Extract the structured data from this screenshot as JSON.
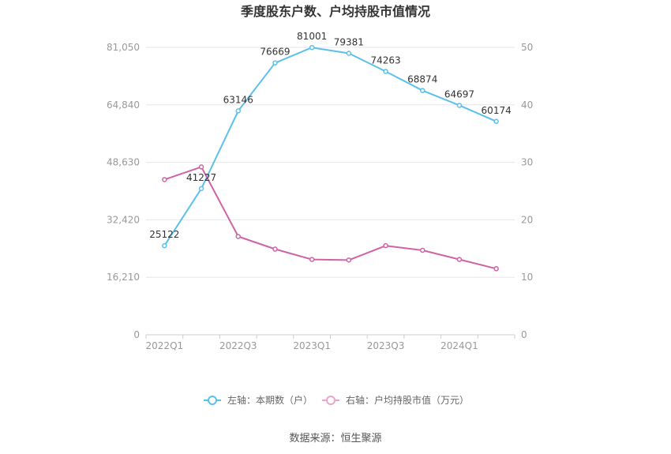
{
  "chart_data": {
    "type": "line",
    "title": "季度股东户数、户均持股市值情况",
    "categories": [
      "2022Q1",
      "2022Q2",
      "2022Q3",
      "2022Q4",
      "2023Q1",
      "2023Q2",
      "2023Q3",
      "2023Q4",
      "2024Q1",
      "2024Q2"
    ],
    "x_tick_labels": [
      "2022Q1",
      "2022Q3",
      "2023Q1",
      "2023Q3",
      "2024Q1"
    ],
    "left_axis": {
      "ylim": [
        0,
        81050
      ],
      "ticks": [
        0,
        16210,
        32420,
        48630,
        64840,
        81050
      ],
      "tick_labels": [
        "0",
        "16,210",
        "32,420",
        "48,630",
        "64,840",
        "81,050"
      ]
    },
    "right_axis": {
      "ylim": [
        0,
        50
      ],
      "ticks": [
        0,
        10,
        20,
        30,
        40,
        50
      ],
      "tick_labels": [
        "0",
        "10",
        "20",
        "30",
        "40",
        "50"
      ]
    },
    "series": [
      {
        "name": "左轴：本期数（户）",
        "axis": "left",
        "color": "#5bc0eb",
        "values": [
          25122,
          41227,
          63146,
          76669,
          81001,
          79381,
          74263,
          68874,
          64697,
          60174
        ],
        "labels": [
          "25122",
          "41227",
          "63146",
          "76669",
          "81001",
          "79381",
          "74263",
          "68874",
          "64697",
          "60174"
        ]
      },
      {
        "name": "右轴：户均持股市值（万元）",
        "axis": "right",
        "color": "#d063a6",
        "values": [
          27.0,
          29.2,
          17.1,
          14.9,
          13.1,
          13.0,
          15.5,
          14.7,
          13.1,
          11.5
        ]
      }
    ],
    "grid": true,
    "legend_position": "bottom-center",
    "source": "数据来源：恒生聚源"
  }
}
